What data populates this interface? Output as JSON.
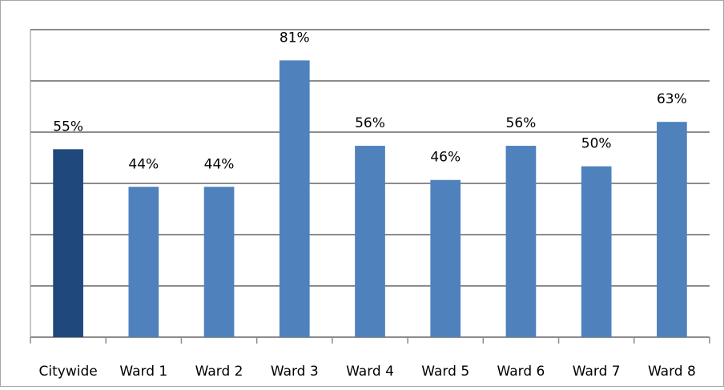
{
  "chart_data": {
    "type": "bar",
    "categories": [
      "Citywide",
      "Ward 1",
      "Ward 2",
      "Ward 3",
      "Ward 4",
      "Ward 5",
      "Ward 6",
      "Ward 7",
      "Ward 8"
    ],
    "values": [
      55,
      44,
      44,
      81,
      56,
      46,
      56,
      50,
      63
    ],
    "value_labels": [
      "55%",
      "44%",
      "44%",
      "81%",
      "56%",
      "46%",
      "56%",
      "50%",
      "63%"
    ],
    "colors": [
      "#1f497d",
      "#4f81bd",
      "#4f81bd",
      "#4f81bd",
      "#4f81bd",
      "#4f81bd",
      "#4f81bd",
      "#4f81bd",
      "#4f81bd"
    ],
    "ylim": [
      0,
      90
    ],
    "yticks": [
      0,
      15,
      30,
      45,
      60,
      75,
      90
    ],
    "grid": true
  }
}
